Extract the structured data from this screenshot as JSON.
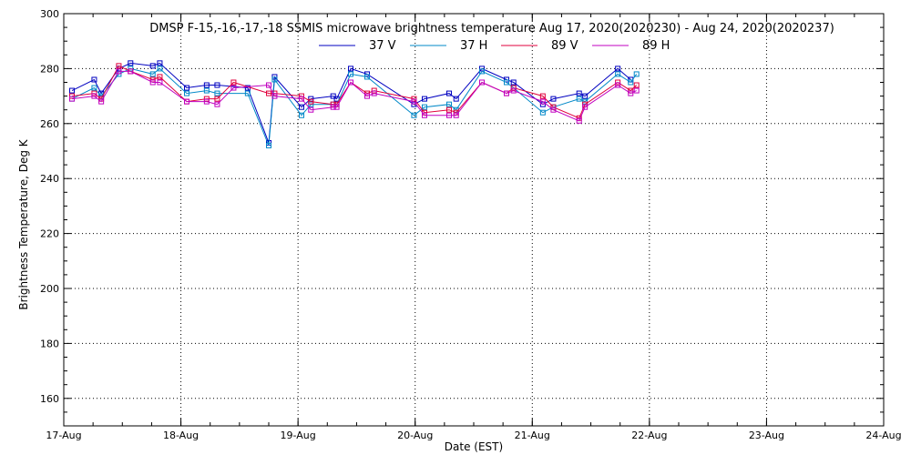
{
  "chart_data": {
    "type": "line",
    "title": "DMSP F-15,-16,-17,-18 SSMIS microwave brightness temperature Aug 17, 2020(2020230) - Aug 24, 2020(2020237)",
    "xlabel": "Date (EST)",
    "ylabel": "Brightness Temperature, Deg K",
    "xlim": [
      0,
      7
    ],
    "ylim": [
      150,
      300
    ],
    "x_tick_values": [
      0,
      1,
      2,
      3,
      4,
      5,
      6,
      7
    ],
    "x_tick_labels": [
      "17-Aug",
      "18-Aug",
      "19-Aug",
      "20-Aug",
      "21-Aug",
      "22-Aug",
      "23-Aug",
      "24-Aug"
    ],
    "y_tick_values": [
      160,
      180,
      200,
      220,
      240,
      260,
      280,
      300
    ],
    "grid": true,
    "legend_position": "top-center",
    "series": [
      {
        "name": "37 V",
        "color": "#0000c0",
        "x": [
          0.07,
          0.26,
          0.32,
          0.47,
          0.57,
          0.76,
          0.82,
          1.05,
          1.22,
          1.31,
          1.57,
          1.75,
          1.8,
          2.03,
          2.11,
          2.3,
          2.33,
          2.45,
          2.59,
          2.99,
          3.08,
          3.29,
          3.35,
          3.57,
          3.78,
          3.84,
          4.09,
          4.18,
          4.4,
          4.45,
          4.73,
          4.84
        ],
        "values": [
          272,
          276,
          271,
          280,
          282,
          281,
          282,
          273,
          274,
          274,
          273,
          253,
          277,
          266,
          269,
          270,
          269,
          280,
          278,
          267,
          269,
          271,
          269,
          280,
          276,
          275,
          267,
          269,
          271,
          270,
          280,
          276
        ]
      },
      {
        "name": "37 H",
        "color": "#0088c8",
        "x": [
          0.07,
          0.26,
          0.32,
          0.47,
          0.57,
          0.76,
          0.82,
          1.05,
          1.22,
          1.31,
          1.57,
          1.75,
          1.8,
          2.03,
          2.11,
          2.3,
          2.33,
          2.45,
          2.59,
          2.99,
          3.08,
          3.29,
          3.35,
          3.57,
          3.78,
          3.84,
          4.09,
          4.18,
          4.4,
          4.45,
          4.73,
          4.84,
          4.89
        ],
        "values": [
          269,
          273,
          270,
          278,
          280,
          278,
          280,
          271,
          272,
          271,
          271,
          252,
          276,
          263,
          267,
          267,
          267,
          278,
          277,
          263,
          266,
          267,
          265,
          279,
          275,
          273,
          264,
          266,
          269,
          268,
          278,
          275,
          278
        ]
      },
      {
        "name": "89 V",
        "color": "#e0003c",
        "x": [
          0.07,
          0.26,
          0.32,
          0.47,
          0.57,
          0.76,
          0.82,
          1.05,
          1.22,
          1.31,
          1.45,
          1.75,
          1.8,
          2.03,
          2.11,
          2.3,
          2.33,
          2.45,
          2.59,
          2.65,
          2.99,
          3.08,
          3.29,
          3.35,
          3.57,
          3.78,
          3.84,
          4.09,
          4.18,
          4.4,
          4.45,
          4.73,
          4.84,
          4.89
        ],
        "values": [
          270,
          271,
          269,
          281,
          279,
          276,
          277,
          268,
          269,
          269,
          275,
          271,
          271,
          270,
          268,
          267,
          267,
          275,
          271,
          272,
          269,
          264,
          265,
          264,
          275,
          271,
          273,
          270,
          266,
          262,
          267,
          275,
          272,
          274
        ]
      },
      {
        "name": "89 H",
        "color": "#c000c0",
        "x": [
          0.07,
          0.26,
          0.32,
          0.47,
          0.57,
          0.76,
          0.82,
          1.05,
          1.22,
          1.31,
          1.45,
          1.75,
          1.8,
          2.03,
          2.11,
          2.3,
          2.33,
          2.45,
          2.59,
          2.65,
          2.99,
          3.08,
          3.29,
          3.35,
          3.57,
          3.78,
          3.84,
          4.09,
          4.18,
          4.4,
          4.45,
          4.73,
          4.84,
          4.89
        ],
        "values": [
          269,
          270,
          268,
          279,
          279,
          275,
          275,
          268,
          268,
          267,
          273,
          274,
          270,
          269,
          265,
          266,
          266,
          275,
          270,
          271,
          268,
          263,
          263,
          263,
          275,
          271,
          272,
          268,
          265,
          261,
          266,
          274,
          271,
          272
        ]
      }
    ]
  }
}
